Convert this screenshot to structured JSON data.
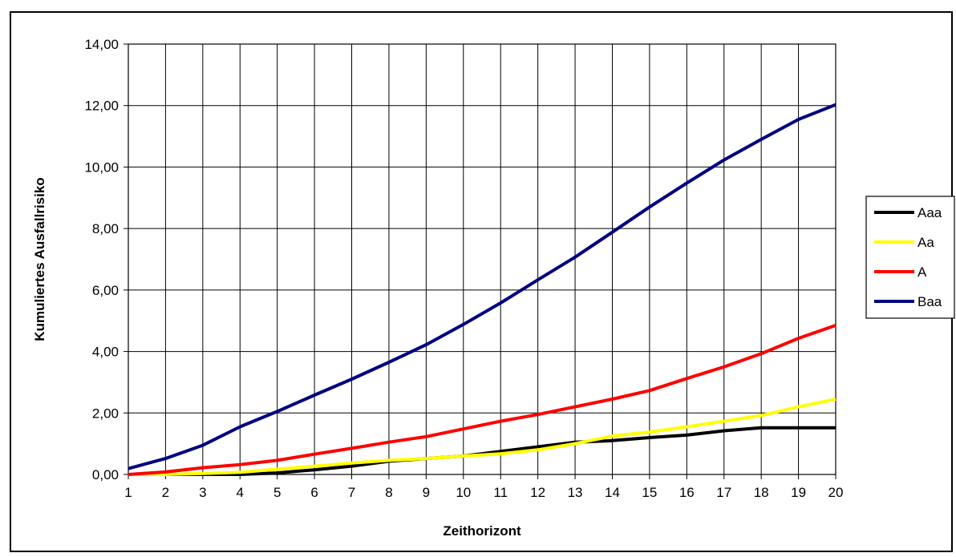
{
  "chart_data": {
    "type": "line",
    "title": "",
    "xlabel": "Zeithorizont",
    "ylabel": "Kumuliertes Ausfallrisiko",
    "x": [
      1,
      2,
      3,
      4,
      5,
      6,
      7,
      8,
      9,
      10,
      11,
      12,
      13,
      14,
      15,
      16,
      17,
      18,
      19,
      20
    ],
    "x_tick_labels": [
      "1",
      "2",
      "3",
      "4",
      "5",
      "6",
      "7",
      "8",
      "9",
      "10",
      "11",
      "12",
      "13",
      "14",
      "15",
      "16",
      "17",
      "18",
      "19",
      "20"
    ],
    "y_tick_labels": [
      "0,00",
      "2,00",
      "4,00",
      "6,00",
      "8,00",
      "10,00",
      "12,00",
      "14,00"
    ],
    "y_ticks": [
      0,
      2,
      4,
      6,
      8,
      10,
      12,
      14
    ],
    "ylim": [
      0,
      14
    ],
    "xlim": [
      1,
      20
    ],
    "grid": true,
    "legend": "right",
    "series": [
      {
        "name": "Aaa",
        "color": "#000000",
        "values": [
          0.0,
          0.0,
          0.0,
          0.0,
          0.05,
          0.15,
          0.27,
          0.43,
          0.52,
          0.6,
          0.75,
          0.9,
          1.05,
          1.1,
          1.2,
          1.28,
          1.42,
          1.52,
          1.52,
          1.52
        ]
      },
      {
        "name": "Aa",
        "color": "#ffff00",
        "values": [
          0.0,
          0.0,
          0.03,
          0.07,
          0.17,
          0.27,
          0.37,
          0.46,
          0.52,
          0.6,
          0.67,
          0.8,
          1.0,
          1.25,
          1.38,
          1.55,
          1.73,
          1.92,
          2.2,
          2.45
        ]
      },
      {
        "name": "A",
        "color": "#ff0000",
        "values": [
          0.0,
          0.08,
          0.22,
          0.32,
          0.46,
          0.66,
          0.85,
          1.05,
          1.23,
          1.48,
          1.73,
          1.95,
          2.2,
          2.45,
          2.73,
          3.12,
          3.5,
          3.93,
          4.43,
          4.85
        ]
      },
      {
        "name": "Baa",
        "color": "#000080",
        "values": [
          0.19,
          0.52,
          0.95,
          1.55,
          2.05,
          2.58,
          3.1,
          3.65,
          4.22,
          4.88,
          5.58,
          6.33,
          7.07,
          7.88,
          8.7,
          9.48,
          10.23,
          10.9,
          11.55,
          12.03
        ]
      }
    ]
  }
}
